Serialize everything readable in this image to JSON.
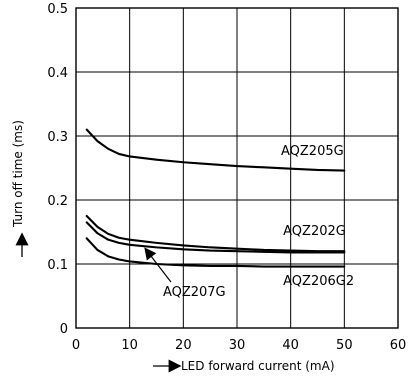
{
  "chart_data": {
    "type": "line",
    "xlabel": "LED forward current (mA)",
    "ylabel": "Turn off time (ms)",
    "xlim": [
      0,
      60
    ],
    "ylim": [
      0,
      0.5
    ],
    "x_ticks": [
      0,
      10,
      20,
      30,
      40,
      50,
      60
    ],
    "y_ticks": [
      0,
      0.1,
      0.2,
      0.3,
      0.4,
      0.5
    ],
    "x_tick_labels": [
      "0",
      "10",
      "20",
      "30",
      "40",
      "50",
      "60"
    ],
    "y_tick_labels": [
      "0",
      "0.1",
      "0.2",
      "0.3",
      "0.4",
      "0.5"
    ],
    "grid": true,
    "series": [
      {
        "name": "AQZ205G",
        "x": [
          2,
          4,
          6,
          8,
          10,
          15,
          20,
          25,
          30,
          35,
          40,
          45,
          50
        ],
        "y": [
          0.31,
          0.292,
          0.28,
          0.272,
          0.268,
          0.263,
          0.259,
          0.256,
          0.253,
          0.251,
          0.249,
          0.247,
          0.246
        ]
      },
      {
        "name": "AQZ202G",
        "x": [
          2,
          4,
          6,
          8,
          10,
          15,
          20,
          25,
          30,
          35,
          40,
          45,
          50
        ],
        "y": [
          0.175,
          0.158,
          0.147,
          0.141,
          0.138,
          0.133,
          0.129,
          0.126,
          0.124,
          0.122,
          0.121,
          0.12,
          0.12
        ]
      },
      {
        "name": "AQZ207G",
        "x": [
          2,
          4,
          6,
          8,
          10,
          15,
          20,
          25,
          30,
          35,
          40,
          45,
          50
        ],
        "y": [
          0.165,
          0.148,
          0.138,
          0.133,
          0.13,
          0.126,
          0.123,
          0.121,
          0.12,
          0.119,
          0.118,
          0.118,
          0.118
        ]
      },
      {
        "name": "AQZ206G2",
        "x": [
          2,
          4,
          6,
          8,
          10,
          15,
          20,
          25,
          30,
          35,
          40,
          45,
          50
        ],
        "y": [
          0.14,
          0.122,
          0.112,
          0.107,
          0.104,
          0.1,
          0.098,
          0.097,
          0.097,
          0.096,
          0.096,
          0.096,
          0.096
        ]
      }
    ],
    "annotations": [
      {
        "series": "AQZ205G",
        "text": "AQZ205G",
        "x": 38.2,
        "y": 0.27
      },
      {
        "series": "AQZ202G",
        "text": "AQZ202G",
        "x": 38.6,
        "y": 0.145
      },
      {
        "series": "AQZ207G",
        "text": "AQZ207G",
        "x": 16.2,
        "y": 0.05,
        "arrow_to": [
          13,
          0.123
        ]
      },
      {
        "series": "AQZ206G2",
        "text": "AQZ206G2",
        "x": 38.6,
        "y": 0.067
      }
    ]
  }
}
